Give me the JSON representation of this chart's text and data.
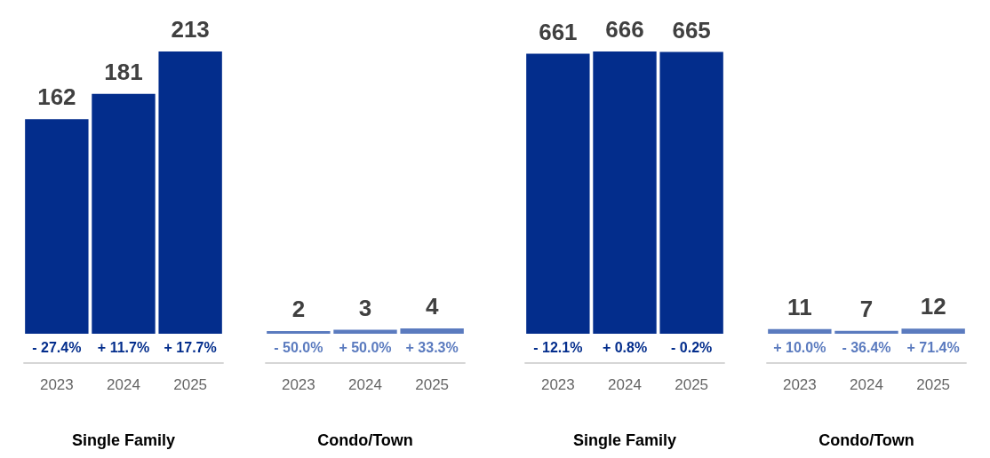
{
  "chart_data": [
    {
      "type": "bar",
      "xlabel": "Single Family",
      "categories": [
        "2023",
        "2024",
        "2025"
      ],
      "values": [
        162,
        181,
        213
      ],
      "color": "#032d8c",
      "data_labels": true,
      "tick_labels": "x",
      "annotations": [
        "- 27.4%",
        "+ 11.7%",
        "+ 17.7%"
      ]
    },
    {
      "type": "bar",
      "xlabel": "Condo/Town",
      "categories": [
        "2023",
        "2024",
        "2025"
      ],
      "values": [
        2,
        3,
        4
      ],
      "color": "#5b7bbf",
      "data_labels": true,
      "tick_labels": "x",
      "annotations": [
        "- 50.0%",
        "+ 50.0%",
        "+ 33.3%"
      ]
    },
    {
      "type": "bar",
      "xlabel": "Single Family",
      "categories": [
        "2023",
        "2024",
        "2025"
      ],
      "values": [
        661,
        666,
        665
      ],
      "color": "#032d8c",
      "data_labels": true,
      "tick_labels": "x",
      "annotations": [
        "- 12.1%",
        "+ 0.8%",
        "- 0.2%"
      ]
    },
    {
      "type": "bar",
      "xlabel": "Condo/Town",
      "categories": [
        "2023",
        "2024",
        "2025"
      ],
      "values": [
        11,
        7,
        12
      ],
      "color": "#5b7bbf",
      "data_labels": true,
      "tick_labels": "x",
      "annotations": [
        "+ 10.0%",
        "- 36.4%",
        "+ 71.4%"
      ]
    }
  ]
}
